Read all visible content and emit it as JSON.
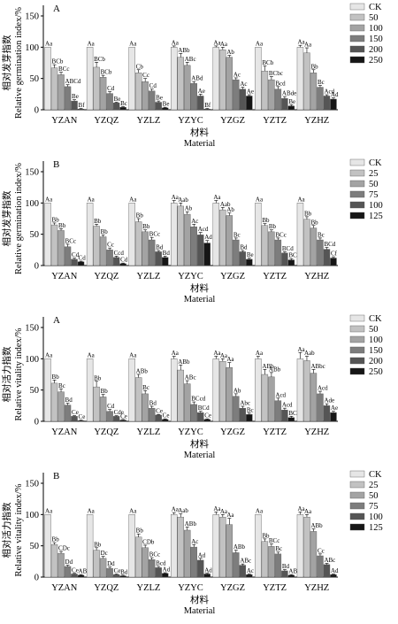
{
  "colors": {
    "series": [
      "#e6e6e6",
      "#c2c2c2",
      "#a3a3a3",
      "#7d7d7d",
      "#555555",
      "#161616"
    ],
    "bar_stroke": "#555555",
    "axis": "#000000"
  },
  "chart_data": [
    {
      "type": "bar",
      "panel_label": "A",
      "ylabel_cn": "相对发芽指数",
      "ylabel": "Relative germination index/%",
      "xlabel_cn": "材料",
      "xlabel": "Material",
      "categories": [
        "YZAN",
        "YZQZ",
        "YZLZ",
        "YZYC",
        "YZGZ",
        "YZTZ",
        "YZHZ"
      ],
      "ylim": [
        0,
        150
      ],
      "yticks": [
        0,
        50,
        100,
        150
      ],
      "legend_position": "right",
      "series": [
        {
          "name": "CK",
          "values": [
            100,
            100,
            100,
            100,
            100,
            100,
            100
          ],
          "errors": [
            0,
            0,
            0,
            2,
            2,
            0,
            3
          ],
          "labels": [
            "Aa",
            "Aa",
            "Aa",
            "Aa",
            "Aa",
            "Aa",
            "Aa"
          ]
        },
        {
          "name": "50",
          "values": [
            67,
            68,
            59,
            84,
            96,
            62,
            91
          ],
          "errors": [
            5,
            8,
            5,
            6,
            4,
            8,
            8
          ],
          "labels": [
            "BCb",
            "BCb",
            "Cb",
            "ABb",
            "Aa",
            "BCb",
            "Aa"
          ]
        },
        {
          "name": "100",
          "values": [
            56,
            52,
            45,
            71,
            84,
            48,
            59
          ],
          "errors": [
            4,
            3,
            5,
            5,
            3,
            5,
            5
          ],
          "labels": [
            "BCc",
            "BCb",
            "Cc",
            "ABc",
            "Ab",
            "BCbc",
            "Bb"
          ]
        },
        {
          "name": "150",
          "values": [
            37,
            26,
            30,
            42,
            48,
            33,
            36
          ],
          "errors": [
            3,
            3,
            3,
            3,
            3,
            4,
            3
          ],
          "labels": [
            "ABCd",
            "Cd",
            "Cd",
            "ABd",
            "Ac",
            "Bcd",
            "Bc"
          ]
        },
        {
          "name": "200",
          "values": [
            14,
            11,
            12,
            22,
            33,
            18,
            22
          ],
          "errors": [
            2,
            1,
            2,
            3,
            3,
            3,
            2
          ],
          "labels": [
            "Be",
            "Be",
            "Be",
            "Ae",
            "Ac",
            "ABde",
            "Acd"
          ]
        },
        {
          "name": "250",
          "values": [
            1,
            4,
            3,
            1,
            22,
            6,
            17
          ],
          "errors": [
            1,
            1,
            1,
            1,
            2,
            2,
            2
          ],
          "labels": [
            "Bf",
            "Bc",
            "Be",
            "Bf",
            "Ae",
            "Be",
            "Ad"
          ]
        }
      ]
    },
    {
      "type": "bar",
      "panel_label": "B",
      "ylabel_cn": "相对发芽指数",
      "ylabel": "Relative germination index/%",
      "xlabel_cn": "材料",
      "xlabel": "Material",
      "categories": [
        "YZAN",
        "YZQZ",
        "YZLZ",
        "YZYC",
        "YZGZ",
        "YZTZ",
        "YZHZ"
      ],
      "ylim": [
        0,
        150
      ],
      "yticks": [
        0,
        50,
        100,
        150
      ],
      "legend_position": "right",
      "series": [
        {
          "name": "CK",
          "values": [
            100,
            100,
            100,
            100,
            100,
            100,
            100
          ],
          "errors": [
            0,
            0,
            0,
            4,
            4,
            0,
            0
          ],
          "labels": [
            "Aa",
            "Aa",
            "Aa",
            "Aa",
            "Aa",
            "Aa",
            "Aa"
          ]
        },
        {
          "name": "25",
          "values": [
            65,
            63,
            70,
            95,
            89,
            64,
            74
          ],
          "errors": [
            3,
            3,
            5,
            5,
            4,
            3,
            4
          ],
          "labels": [
            "Bb",
            "Bb",
            "Bb",
            "Aab",
            "Aab",
            "Bb",
            "Bb"
          ]
        },
        {
          "name": "50",
          "values": [
            56,
            46,
            54,
            82,
            80,
            54,
            60
          ],
          "errors": [
            3,
            3,
            3,
            4,
            4,
            3,
            4
          ],
          "labels": [
            "Bb",
            "Bb",
            "Bb",
            "Ab",
            "Ab",
            "Bb",
            "Bb"
          ]
        },
        {
          "name": "75",
          "values": [
            30,
            25,
            41,
            62,
            41,
            41,
            41
          ],
          "errors": [
            4,
            3,
            4,
            4,
            3,
            3,
            3
          ],
          "labels": [
            "BCc",
            "Cc",
            "BCc",
            "Ac",
            "Bc",
            "BCc",
            "Bc"
          ]
        },
        {
          "name": "100",
          "values": [
            10,
            13,
            22,
            49,
            22,
            20,
            26
          ],
          "errors": [
            2,
            2,
            2,
            4,
            2,
            2,
            3
          ],
          "labels": [
            "Cd",
            "Ccd",
            "Bd",
            "Acd",
            "Bd",
            "BCd",
            "BCd"
          ]
        },
        {
          "name": "125",
          "values": [
            6,
            3,
            13,
            36,
            10,
            9,
            12
          ],
          "errors": [
            1,
            1,
            2,
            4,
            2,
            2,
            2
          ],
          "labels": [
            "Cd",
            "Cd",
            "Bd",
            "Ad",
            "Be",
            "BCc",
            "Cf"
          ]
        }
      ]
    },
    {
      "type": "bar",
      "panel_label": "A",
      "ylabel_cn": "相对活力指数",
      "ylabel": "Relative vitality index/%",
      "xlabel_cn": "材料",
      "xlabel": "Material",
      "categories": [
        "YZAN",
        "YZQZ",
        "YZLZ",
        "YZYC",
        "YZGZ",
        "YZTZ",
        "YZHZ"
      ],
      "ylim": [
        0,
        150
      ],
      "yticks": [
        0,
        50,
        100,
        150
      ],
      "legend_position": "right",
      "series": [
        {
          "name": "CK",
          "values": [
            100,
            100,
            100,
            100,
            100,
            100,
            100
          ],
          "errors": [
            0,
            0,
            0,
            4,
            4,
            4,
            10
          ],
          "labels": [
            "Aa",
            "Aa",
            "Aa",
            "Aa",
            "Aa",
            "Aa",
            "Aa"
          ]
        },
        {
          "name": "50",
          "values": [
            61,
            55,
            70,
            82,
            96,
            75,
            97
          ],
          "errors": [
            5,
            9,
            5,
            8,
            4,
            8,
            7
          ],
          "labels": [
            "Bb",
            "Bb",
            "ABb",
            "ABb",
            "Aa",
            "ABb",
            "Aab"
          ]
        },
        {
          "name": "100",
          "values": [
            47,
            39,
            44,
            60,
            86,
            71,
            77
          ],
          "errors": [
            5,
            4,
            5,
            5,
            8,
            7,
            6
          ],
          "labels": [
            "Bc",
            "Bb",
            "Bc",
            "ABc",
            "Aa",
            "ABb",
            "ABbc"
          ]
        },
        {
          "name": "150",
          "values": [
            26,
            16,
            21,
            27,
            40,
            33,
            44
          ],
          "errors": [
            3,
            3,
            3,
            4,
            4,
            4,
            4
          ],
          "labels": [
            "Bd",
            "Cd",
            "Bd",
            "BCcd",
            "Ab",
            "Acd",
            "Acd"
          ]
        },
        {
          "name": "200",
          "values": [
            8,
            8,
            10,
            14,
            21,
            18,
            25
          ],
          "errors": [
            1,
            1,
            1,
            2,
            3,
            3,
            3
          ],
          "labels": [
            "Ce",
            "Cde",
            "Ce",
            "BCd",
            "Abc",
            "Acd",
            "Ade"
          ]
        },
        {
          "name": "250",
          "values": [
            1,
            2,
            3,
            3,
            11,
            6,
            14
          ],
          "errors": [
            1,
            1,
            1,
            1,
            2,
            2,
            2
          ],
          "labels": [
            "Ce",
            "Ce",
            "Ce",
            "Ce",
            "Bc",
            "BCd",
            "Ae"
          ]
        }
      ]
    },
    {
      "type": "bar",
      "panel_label": "B",
      "ylabel_cn": "相对活力指数",
      "ylabel": "Relative vitality index/%",
      "xlabel_cn": "材料",
      "xlabel": "Material",
      "categories": [
        "YZAN",
        "YZQZ",
        "YZLZ",
        "YZYC",
        "YZGZ",
        "YZTZ",
        "YZHZ"
      ],
      "ylim": [
        0,
        150
      ],
      "yticks": [
        0,
        50,
        100,
        150
      ],
      "legend_position": "right",
      "series": [
        {
          "name": "CK",
          "values": [
            100,
            100,
            100,
            100,
            100,
            100,
            100
          ],
          "errors": [
            0,
            0,
            0,
            3,
            4,
            0,
            4
          ],
          "labels": [
            "Aa",
            "Aa",
            "Aa",
            "Aa",
            "Aa",
            "Aa",
            "Aa"
          ]
        },
        {
          "name": "25",
          "values": [
            52,
            43,
            64,
            96,
            96,
            57,
            96
          ],
          "errors": [
            3,
            4,
            5,
            5,
            4,
            4,
            4
          ],
          "labels": [
            "Bb",
            "Bb",
            "Bb",
            "Aab",
            "Aa",
            "Bb",
            "Aa"
          ]
        },
        {
          "name": "50",
          "values": [
            38,
            30,
            47,
            75,
            84,
            49,
            73
          ],
          "errors": [
            3,
            3,
            4,
            5,
            10,
            4,
            4
          ],
          "labels": [
            "CDc",
            "Dc",
            "CDb",
            "ABb",
            "Aa",
            "BCc",
            "ABb"
          ]
        },
        {
          "name": "75",
          "values": [
            17,
            14,
            28,
            48,
            39,
            37,
            34
          ],
          "errors": [
            2,
            2,
            3,
            4,
            4,
            3,
            3
          ],
          "labels": [
            "Dd",
            "Dd",
            "BCc",
            "Ac",
            "ABb",
            "Bc",
            "Cc"
          ]
        },
        {
          "name": "100",
          "values": [
            5,
            4,
            15,
            27,
            19,
            10,
            20
          ],
          "errors": [
            1,
            1,
            2,
            3,
            2,
            2,
            2
          ],
          "labels": [
            "Ce",
            "Ce",
            "Bcd",
            "Ad",
            "ABc",
            "Bd",
            "ABc"
          ]
        },
        {
          "name": "125",
          "values": [
            3,
            2,
            6,
            5,
            4,
            3,
            4
          ],
          "errors": [
            1,
            1,
            1,
            1,
            1,
            1,
            1
          ],
          "labels": [
            "ABc",
            "Bd",
            "Ad",
            "Ad",
            "Ac",
            "ABd",
            "Ad"
          ]
        }
      ]
    }
  ]
}
